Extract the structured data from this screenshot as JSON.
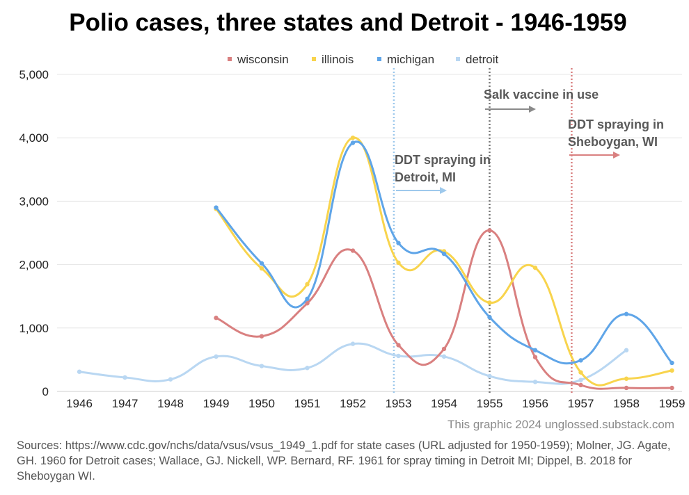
{
  "chart_data": {
    "type": "line",
    "title": "Polio cases, three states and Detroit - 1946-1959",
    "categories": [
      "1946",
      "1947",
      "1948",
      "1949",
      "1950",
      "1951",
      "1952",
      "1953",
      "1954",
      "1955",
      "1956",
      "1957",
      "1958",
      "1959"
    ],
    "ylim": [
      0,
      5000
    ],
    "yticks": [
      "0",
      "1,000",
      "2,000",
      "3,000",
      "4,000",
      "5,000"
    ],
    "grid": true,
    "legend_position": "top-center",
    "series": [
      {
        "name": "wisconsin",
        "color": "#d98080",
        "values": [
          null,
          null,
          null,
          1160,
          870,
          1390,
          2220,
          730,
          670,
          2540,
          540,
          100,
          55,
          55
        ]
      },
      {
        "name": "illinois",
        "color": "#f8d44d",
        "values": [
          null,
          null,
          null,
          2880,
          1940,
          1690,
          4000,
          2030,
          2210,
          1400,
          1950,
          300,
          200,
          330
        ]
      },
      {
        "name": "michigan",
        "color": "#5fa5e8",
        "values": [
          null,
          null,
          null,
          2900,
          2020,
          1460,
          3920,
          2340,
          2170,
          1170,
          650,
          490,
          1220,
          450
        ]
      },
      {
        "name": "detroit",
        "color": "#b9d7f2",
        "values": [
          310,
          220,
          190,
          550,
          400,
          370,
          750,
          560,
          550,
          240,
          150,
          180,
          650,
          null
        ]
      }
    ],
    "markers": [
      {
        "at": 1952.9,
        "color": "#9ec9ec",
        "style": "dotted"
      },
      {
        "at": 1955.0,
        "color": "#777777",
        "style": "dotted"
      },
      {
        "at": 1956.8,
        "color": "#d98080",
        "style": "dotted"
      }
    ],
    "annotations": [
      {
        "lines": [
          "DDT spraying in",
          "Detroit, MI"
        ],
        "arrow_color": "#9ec9ec"
      },
      {
        "lines": [
          "Salk vaccine in use"
        ],
        "arrow_color": "#8a8a8a"
      },
      {
        "lines": [
          "DDT spraying in",
          "Sheboygan, WI"
        ],
        "arrow_color": "#d98080"
      }
    ]
  },
  "credit": "This graphic 2024 unglossed.substack.com",
  "sources": "Sources: https://www.cdc.gov/nchs/data/vsus/vsus_1949_1.pdf for state cases (URL adjusted for 1950-1959); Molner, JG. Agate, GH. 1960 for Detroit cases; Wallace, GJ. Nickell, WP. Bernard, RF. 1961 for spray timing in Detroit MI; Dippel, B. 2018 for Sheboygan WI."
}
